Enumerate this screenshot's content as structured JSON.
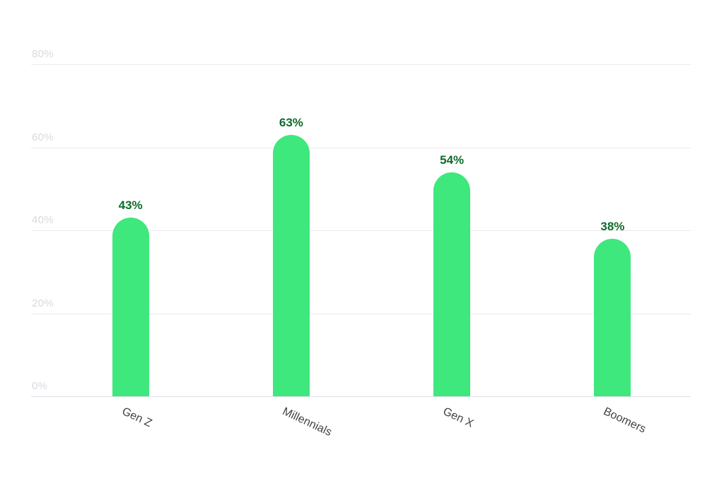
{
  "chart_data": {
    "type": "bar",
    "title": "",
    "categories": [
      "Gen Z",
      "Millennials",
      "Gen X",
      "Boomers"
    ],
    "values": [
      43,
      63,
      54,
      38
    ],
    "value_labels": [
      "43%",
      "63%",
      "54%",
      "38%"
    ],
    "xlabel": "",
    "ylabel": "",
    "ylim": [
      0,
      80
    ],
    "yticks": [
      0,
      20,
      40,
      60,
      80
    ],
    "ytick_labels": [
      "0%",
      "20%",
      "40%",
      "60%",
      "80%"
    ],
    "grid": true,
    "legend": false,
    "bar_shape": "rounded-top",
    "x_label_rotation_deg": 25,
    "colors": {
      "bar": "#3ee87c",
      "value_label": "#0e6b2b",
      "x_tick_label": "#3f4347",
      "y_tick_label": "#d9dade",
      "gridline": "#ebebef",
      "axis_line": "#e1e2e7",
      "background": "#ffffff"
    }
  }
}
